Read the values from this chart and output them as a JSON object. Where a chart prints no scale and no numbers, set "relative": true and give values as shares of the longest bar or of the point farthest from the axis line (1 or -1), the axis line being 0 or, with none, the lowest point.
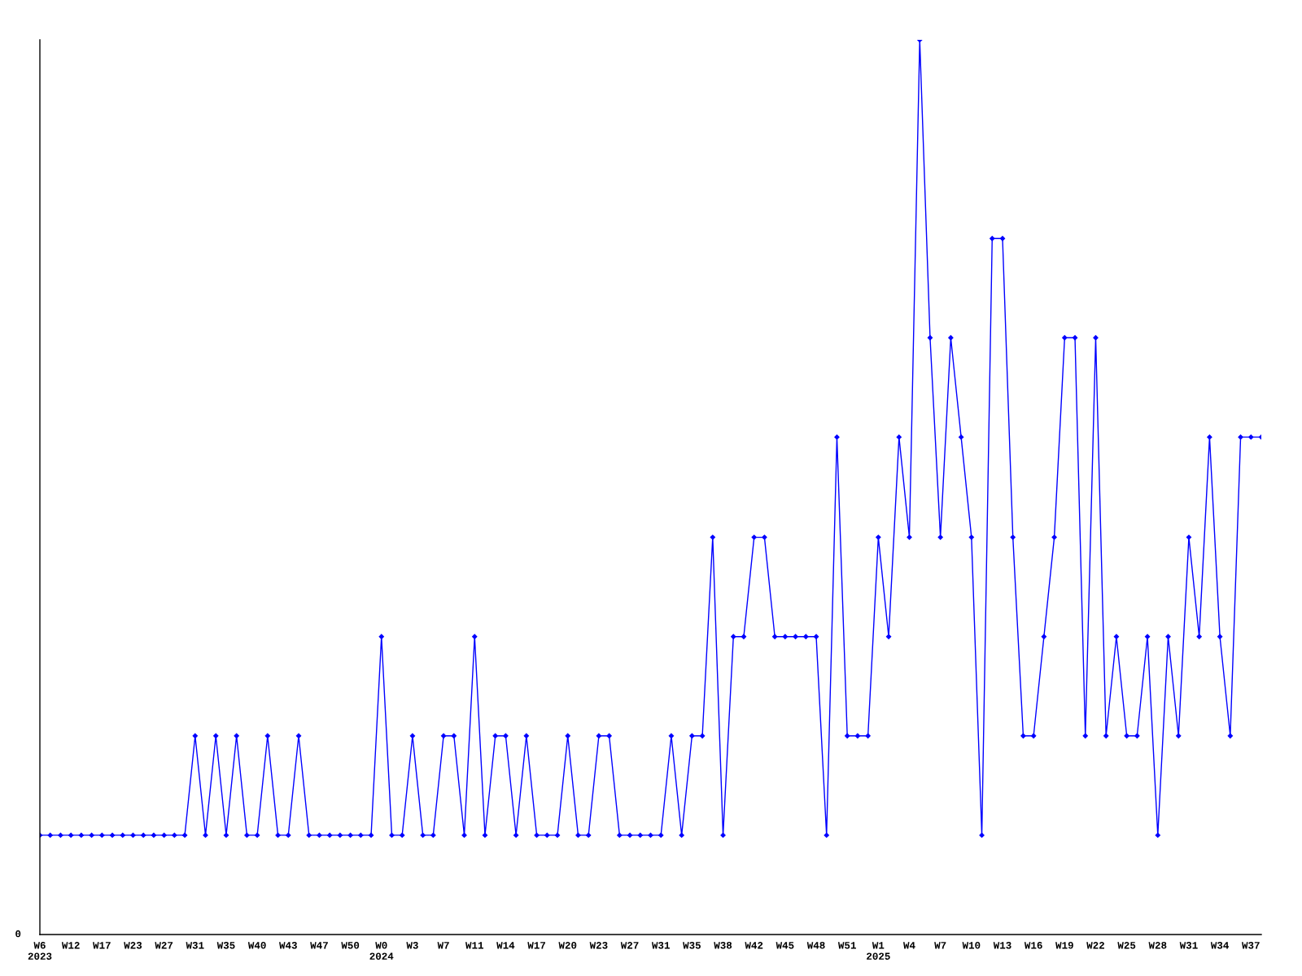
{
  "chart_data": {
    "type": "line",
    "relative": true,
    "marker": "diamond",
    "line_style": "solid",
    "grid": false,
    "legend": false,
    "annotations": [
      "0"
    ],
    "categories": [
      "W6\n2023",
      null,
      null,
      "W12",
      null,
      null,
      "W17",
      null,
      null,
      "W23",
      null,
      null,
      "W27",
      null,
      null,
      "W31",
      null,
      null,
      "W35",
      null,
      null,
      "W40",
      null,
      null,
      "W43",
      null,
      null,
      "W47",
      null,
      null,
      "W50",
      null,
      null,
      "W0\n2024",
      null,
      null,
      "W3",
      null,
      null,
      "W7",
      null,
      null,
      "W11",
      null,
      null,
      "W14",
      null,
      null,
      "W17",
      null,
      null,
      "W20",
      null,
      null,
      "W23",
      null,
      null,
      "W27",
      null,
      null,
      "W31",
      null,
      null,
      "W35",
      null,
      null,
      "W38",
      null,
      null,
      "W42",
      null,
      null,
      "W45",
      null,
      null,
      "W48",
      null,
      null,
      "W51",
      null,
      null,
      "W1\n2025",
      null,
      null,
      "W4",
      null,
      null,
      "W7",
      null,
      null,
      "W10",
      null,
      null,
      "W13",
      null,
      null,
      "W16",
      null,
      null,
      "W19",
      null,
      null,
      "W22",
      null,
      null,
      "W25",
      null,
      null,
      "W28",
      null,
      null,
      "W31",
      null,
      null,
      "W34",
      null,
      null,
      "W37",
      null
    ],
    "series": [
      {
        "color": "#0000ff",
        "values": [
          0.111,
          0.111,
          0.111,
          0.111,
          0.111,
          0.111,
          0.111,
          0.111,
          0.111,
          0.111,
          0.111,
          0.111,
          0.111,
          0.111,
          0.111,
          0.222,
          0.111,
          0.222,
          0.111,
          0.222,
          0.111,
          0.111,
          0.222,
          0.111,
          0.111,
          0.222,
          0.111,
          0.111,
          0.111,
          0.111,
          0.111,
          0.111,
          0.111,
          0.333,
          0.111,
          0.111,
          0.222,
          0.111,
          0.111,
          0.222,
          0.222,
          0.111,
          0.333,
          0.111,
          0.222,
          0.222,
          0.111,
          0.222,
          0.111,
          0.111,
          0.111,
          0.222,
          0.111,
          0.111,
          0.222,
          0.222,
          0.111,
          0.111,
          0.111,
          0.111,
          0.111,
          0.222,
          0.111,
          0.222,
          0.222,
          0.444,
          0.111,
          0.333,
          0.333,
          0.444,
          0.444,
          0.333,
          0.333,
          0.333,
          0.333,
          0.333,
          0.111,
          0.556,
          0.222,
          0.222,
          0.222,
          0.444,
          0.333,
          0.556,
          0.444,
          1,
          0.667,
          0.444,
          0.667,
          0.556,
          0.444,
          0.111,
          0.778,
          0.778,
          0.444,
          0.222,
          0.222,
          0.333,
          0.444,
          0.667,
          0.667,
          0.222,
          0.667,
          0.222,
          0.333,
          0.222,
          0.222,
          0.333,
          0.111,
          0.333,
          0.222,
          0.444,
          0.333,
          0.556,
          0.333,
          0.222,
          0.556,
          0.556,
          0.556
        ]
      }
    ]
  }
}
